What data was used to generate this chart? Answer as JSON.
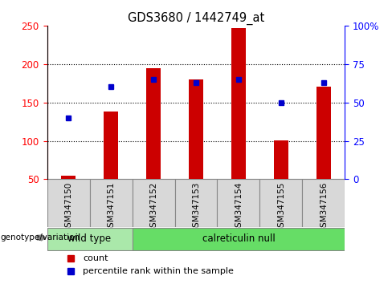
{
  "title": "GDS3680 / 1442749_at",
  "samples": [
    "GSM347150",
    "GSM347151",
    "GSM347152",
    "GSM347153",
    "GSM347154",
    "GSM347155",
    "GSM347156"
  ],
  "counts": [
    55,
    138,
    195,
    180,
    247,
    101,
    170
  ],
  "percentile_ranks": [
    40,
    60,
    65,
    63,
    65,
    50,
    63
  ],
  "ylim_left": [
    50,
    250
  ],
  "ylim_right": [
    0,
    100
  ],
  "yticks_left": [
    50,
    100,
    150,
    200,
    250
  ],
  "yticks_right": [
    0,
    25,
    50,
    75,
    100
  ],
  "yticklabels_right": [
    "0",
    "25",
    "50",
    "75",
    "100%"
  ],
  "bar_color": "#cc0000",
  "dot_color": "#0000cc",
  "bar_bottom": 50,
  "bg_color": "#ffffff",
  "wt_color": "#aae8aa",
  "cn_color": "#66dd66",
  "tick_label_bg": "#d8d8d8",
  "wt_count": 2,
  "cn_count": 5,
  "wt_label": "wild type",
  "cn_label": "calreticulin null",
  "genotype_label": "genotype/variation",
  "legend_count_label": "count",
  "legend_pct_label": "percentile rank within the sample",
  "grid_yticks": [
    100,
    150,
    200
  ]
}
